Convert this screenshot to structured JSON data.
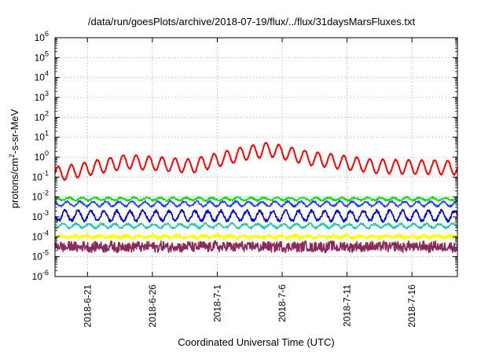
{
  "chart_data": {
    "type": "line",
    "title": "/data/run/goesPlots/archive/2018-07-19/flux/../flux/31daysMarsFluxes.txt",
    "xlabel": "Coordinated Universal Time (UTC)",
    "ylabel": {
      "prefix": "protons/cm",
      "sup": "2",
      "suffix": "-s-sr-MeV"
    },
    "yscale": "log",
    "ylim_exp": [
      -6,
      6
    ],
    "y_ticks": [
      {
        "exp": "-6"
      },
      {
        "exp": "-5"
      },
      {
        "exp": "-4"
      },
      {
        "exp": "-3"
      },
      {
        "exp": "-2"
      },
      {
        "exp": "-1"
      },
      {
        "exp": "0"
      },
      {
        "exp": "1"
      },
      {
        "exp": "2"
      },
      {
        "exp": "3"
      },
      {
        "exp": "4"
      },
      {
        "exp": "5"
      },
      {
        "exp": "6"
      }
    ],
    "xlim": [
      "2018-06-18T12:00",
      "2018-07-19T12:00"
    ],
    "x_ticks": [
      {
        "date": "2018-06-21T00:00",
        "label": "2018-6-21"
      },
      {
        "date": "2018-06-26T00:00",
        "label": "2018-6-26"
      },
      {
        "date": "2018-07-01T00:00",
        "label": "2018-7-1"
      },
      {
        "date": "2018-07-06T00:00",
        "label": "2018-7-6"
      },
      {
        "date": "2018-07-11T00:00",
        "label": "2018-7-11"
      },
      {
        "date": "2018-07-16T00:00",
        "label": "2018-7-16"
      }
    ],
    "grid": true,
    "legend": "none",
    "series": [
      {
        "color": "#ff0000",
        "log_median": -0.45,
        "amplitude": 0.35,
        "noise": 0.05,
        "points": [
          [
            "2018-06-19",
            0.15
          ],
          [
            "2018-06-24",
            0.6
          ],
          [
            "2018-06-29",
            0.35
          ],
          [
            "2018-07-03",
            1.5
          ],
          [
            "2018-07-05",
            2.5
          ],
          [
            "2018-07-08",
            0.9
          ],
          [
            "2018-07-13",
            0.35
          ],
          [
            "2018-07-19",
            0.3
          ]
        ]
      },
      {
        "color": "#00e000",
        "log_median": -2.1,
        "amplitude": 0.07,
        "noise": 0.05
      },
      {
        "color": "#1e3cff",
        "log_median": -2.35,
        "amplitude": 0.12,
        "noise": 0.05
      },
      {
        "color": "#0000cc",
        "log_median": -2.95,
        "amplitude": 0.25,
        "noise": 0.08
      },
      {
        "color": "#20c8a8",
        "log_median": -3.45,
        "amplitude": 0.1,
        "noise": 0.06
      },
      {
        "color": "#ffff00",
        "log_median": -4.0,
        "amplitude": 0.05,
        "noise": 0.1
      },
      {
        "color": "#8b2a5a",
        "log_median": -4.5,
        "amplitude": 0.05,
        "noise": 0.25
      }
    ]
  }
}
